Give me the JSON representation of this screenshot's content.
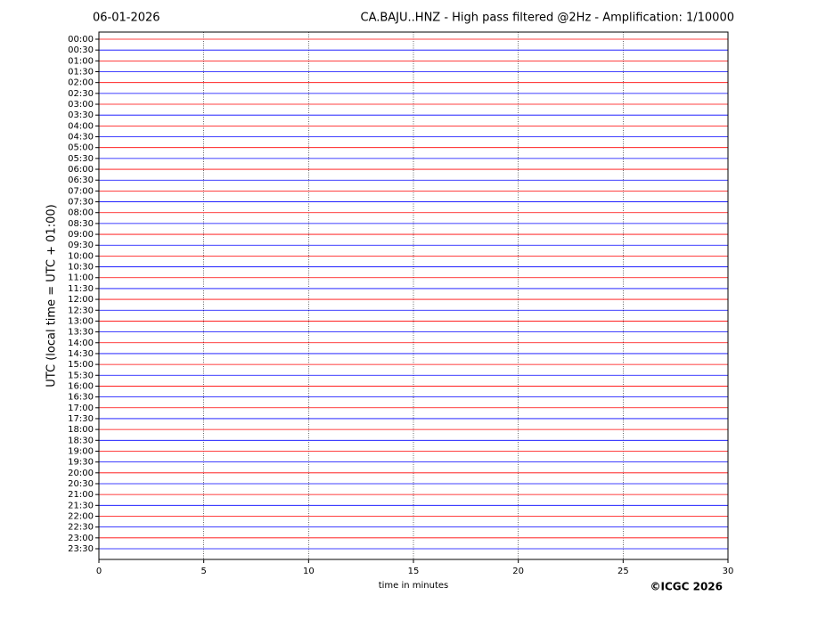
{
  "chart_data": {
    "type": "helicorder",
    "date": "06-01-2026",
    "title": "CA.BAJU..HNZ - High pass filtered @2Hz - Amplification: 1/10000",
    "ylabel": "UTC (local time = UTC + 01:00)",
    "xlabel": "time in minutes",
    "categories": [
      "00:00",
      "00:30",
      "01:00",
      "01:30",
      "02:00",
      "02:30",
      "03:00",
      "03:30",
      "04:00",
      "04:30",
      "05:00",
      "05:30",
      "06:00",
      "06:30",
      "07:00",
      "07:30",
      "08:00",
      "08:30",
      "09:00",
      "09:30",
      "10:00",
      "10:30",
      "11:00",
      "11:30",
      "12:00",
      "12:30",
      "13:00",
      "13:30",
      "14:00",
      "14:30",
      "15:00",
      "15:30",
      "16:00",
      "16:30",
      "17:00",
      "17:30",
      "18:00",
      "18:30",
      "19:00",
      "19:30",
      "20:00",
      "20:30",
      "21:00",
      "21:30",
      "22:00",
      "22:30",
      "23:00",
      "23:30"
    ],
    "colors": [
      "#ff0000",
      "#0000ff"
    ],
    "xlim": [
      0,
      30
    ],
    "xticks": [
      0,
      5,
      10,
      15,
      20,
      25,
      30
    ],
    "grid": true
  },
  "footer": "©ICGC 2026"
}
